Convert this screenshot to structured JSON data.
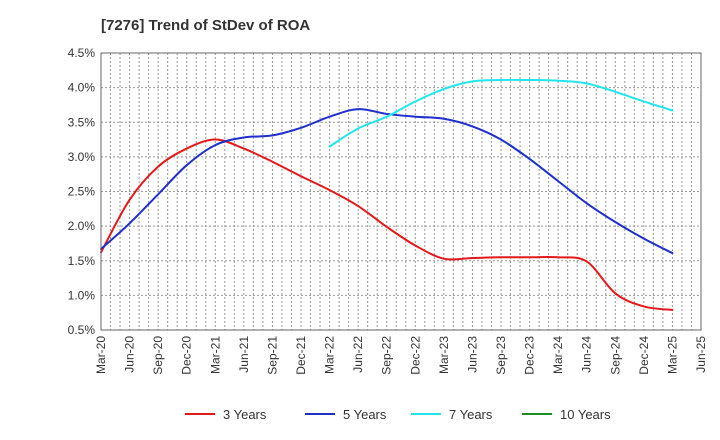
{
  "chart_data": {
    "type": "line",
    "title": "[7276]  Trend of StDev of ROA",
    "xlabel": "",
    "ylabel": "",
    "x_ticks": [
      "Mar-20",
      "Jun-20",
      "Sep-20",
      "Dec-20",
      "Mar-21",
      "Jun-21",
      "Sep-21",
      "Dec-21",
      "Mar-22",
      "Jun-22",
      "Sep-22",
      "Dec-22",
      "Mar-23",
      "Jun-23",
      "Sep-23",
      "Dec-23",
      "Mar-24",
      "Jun-24",
      "Sep-24",
      "Dec-24",
      "Mar-25",
      "Jun-25"
    ],
    "y_ticks": [
      "0.5%",
      "1.0%",
      "1.5%",
      "2.0%",
      "2.5%",
      "3.0%",
      "3.5%",
      "4.0%",
      "4.5%"
    ],
    "ylim": [
      0.5,
      4.5
    ],
    "grid": true,
    "legend_position": "bottom",
    "series": [
      {
        "name": "3 Years",
        "color": "#e31a1c",
        "values": [
          1.62,
          2.38,
          2.86,
          3.12,
          3.25,
          3.12,
          2.93,
          2.72,
          2.52,
          2.29,
          1.99,
          1.72,
          1.53,
          1.54,
          1.55,
          1.55,
          1.55,
          1.49,
          1.03,
          0.84,
          0.79,
          null
        ]
      },
      {
        "name": "5 Years",
        "color": "#1f2fcc",
        "values": [
          1.67,
          2.04,
          2.46,
          2.88,
          3.17,
          3.28,
          3.31,
          3.42,
          3.58,
          3.69,
          3.62,
          3.58,
          3.55,
          3.44,
          3.25,
          2.97,
          2.65,
          2.33,
          2.06,
          1.82,
          1.61,
          null
        ]
      },
      {
        "name": "7 Years",
        "color": "#22e6ee",
        "values": [
          null,
          null,
          null,
          null,
          null,
          null,
          null,
          null,
          3.15,
          3.41,
          3.58,
          3.8,
          3.98,
          4.09,
          4.11,
          4.11,
          4.1,
          4.06,
          3.94,
          3.8,
          3.67,
          null
        ]
      },
      {
        "name": "10 Years",
        "color": "#228b22",
        "values": [
          null,
          null,
          null,
          null,
          null,
          null,
          null,
          null,
          null,
          null,
          null,
          null,
          null,
          null,
          null,
          null,
          null,
          null,
          null,
          null,
          null,
          null
        ]
      }
    ]
  }
}
